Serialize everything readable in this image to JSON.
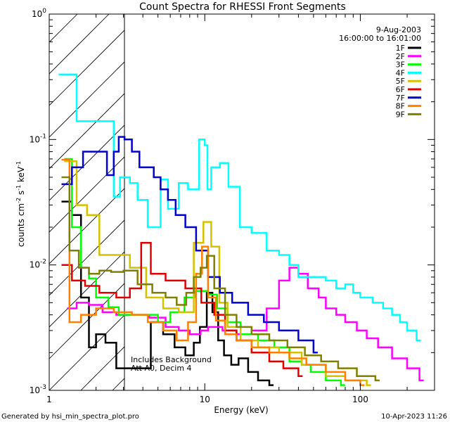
{
  "chart_data": {
    "type": "line",
    "title": "Count Spectra for RHESSI Front Segments",
    "xlabel": "Energy (keV)",
    "ylabel": "counts cm^-2 s^-1 keV^-1",
    "x_scale": "log",
    "y_scale": "log",
    "xlim": [
      1,
      300
    ],
    "ylim": [
      0.001,
      1
    ],
    "x_ticks": [
      {
        "value": 1,
        "label": "1"
      },
      {
        "value": 10,
        "label": "10"
      },
      {
        "value": 100,
        "label": "100"
      }
    ],
    "y_ticks": [
      {
        "value": 0.001,
        "mant": "10",
        "exp": "-3"
      },
      {
        "value": 0.01,
        "mant": "10",
        "exp": "-2"
      },
      {
        "value": 0.1,
        "mant": "10",
        "exp": "-1"
      },
      {
        "value": 1,
        "mant": "10",
        "exp": "0"
      }
    ],
    "grid": false,
    "legend_position": "top-right",
    "date_line": "9-Aug-2003",
    "time_line": "16:00:00 to 16:01:00",
    "annotation_lines": [
      "Includes Background",
      "Att A0, Decim 4"
    ],
    "shaded_region": {
      "x_range": [
        1,
        3
      ],
      "style": "diagonal hatching"
    },
    "series": [
      {
        "name": "1F",
        "color": "#000000",
        "points": [
          [
            1.2,
            0.032
          ],
          [
            1.4,
            0.025
          ],
          [
            1.6,
            0.0055
          ],
          [
            1.8,
            0.0022
          ],
          [
            2.0,
            0.0028
          ],
          [
            2.3,
            0.0024
          ],
          [
            2.7,
            0.0015
          ],
          [
            4.5,
            0.0035
          ],
          [
            5.4,
            0.0028
          ],
          [
            6.4,
            0.0022
          ],
          [
            7.5,
            0.0019
          ],
          [
            8.5,
            0.0024
          ],
          [
            9.3,
            0.0032
          ],
          [
            10.3,
            0.006
          ],
          [
            11.2,
            0.0042
          ],
          [
            12.2,
            0.0025
          ],
          [
            13.3,
            0.0019
          ],
          [
            14.8,
            0.0016
          ],
          [
            16.5,
            0.0018
          ],
          [
            19,
            0.0014
          ],
          [
            22,
            0.0012
          ],
          [
            26,
            0.0011
          ]
        ]
      },
      {
        "name": "2F",
        "color": "#ff00ff",
        "points": [
          [
            1.3,
            0.0045
          ],
          [
            1.5,
            0.005
          ],
          [
            1.8,
            0.0048
          ],
          [
            2.2,
            0.0042
          ],
          [
            2.7,
            0.004
          ],
          [
            4.4,
            0.0038
          ],
          [
            5.6,
            0.0032
          ],
          [
            6.8,
            0.003
          ],
          [
            8.0,
            0.0028
          ],
          [
            9.4,
            0.003
          ],
          [
            10.5,
            0.0032
          ],
          [
            13,
            0.003
          ],
          [
            16,
            0.0028
          ],
          [
            20,
            0.003
          ],
          [
            25,
            0.0045
          ],
          [
            30,
            0.0075
          ],
          [
            35,
            0.0095
          ],
          [
            40,
            0.0085
          ],
          [
            46,
            0.0065
          ],
          [
            54,
            0.0055
          ],
          [
            60,
            0.0045
          ],
          [
            70,
            0.004
          ],
          [
            80,
            0.0035
          ],
          [
            95,
            0.003
          ],
          [
            110,
            0.0026
          ],
          [
            130,
            0.0022
          ],
          [
            160,
            0.0018
          ],
          [
            200,
            0.0015
          ],
          [
            240,
            0.0012
          ]
        ]
      },
      {
        "name": "3F",
        "color": "#00ff00",
        "points": [
          [
            1.25,
            0.07
          ],
          [
            1.4,
            0.02
          ],
          [
            1.6,
            0.0095
          ],
          [
            1.8,
            0.0078
          ],
          [
            2.0,
            0.0055
          ],
          [
            2.4,
            0.0046
          ],
          [
            2.8,
            0.004
          ],
          [
            4.2,
            0.004
          ],
          [
            5.0,
            0.0035
          ],
          [
            6.0,
            0.0042
          ],
          [
            7.4,
            0.0055
          ],
          [
            8.7,
            0.0062
          ],
          [
            10.5,
            0.0058
          ],
          [
            12,
            0.0045
          ],
          [
            14,
            0.0035
          ],
          [
            17,
            0.0028
          ],
          [
            22,
            0.0025
          ],
          [
            28,
            0.0022
          ],
          [
            35,
            0.0017
          ],
          [
            42,
            0.0016
          ],
          [
            48,
            0.0014
          ],
          [
            60,
            0.0012
          ],
          [
            75,
            0.0011
          ]
        ]
      },
      {
        "name": "4F",
        "color": "#00ffff",
        "points": [
          [
            1.15,
            0.33
          ],
          [
            1.5,
            0.14
          ],
          [
            2.6,
            0.035
          ],
          [
            2.85,
            0.05
          ],
          [
            3.3,
            0.045
          ],
          [
            3.7,
            0.033
          ],
          [
            4.3,
            0.02
          ],
          [
            5.2,
            0.048
          ],
          [
            5.8,
            0.028
          ],
          [
            6.8,
            0.045
          ],
          [
            7.8,
            0.04
          ],
          [
            9.2,
            0.1
          ],
          [
            10,
            0.09
          ],
          [
            10.4,
            0.04
          ],
          [
            11,
            0.06
          ],
          [
            12.5,
            0.065
          ],
          [
            14.2,
            0.042
          ],
          [
            16.8,
            0.02
          ],
          [
            20,
            0.018
          ],
          [
            25,
            0.013
          ],
          [
            30,
            0.012
          ],
          [
            35,
            0.01
          ],
          [
            40,
            0.008
          ],
          [
            50,
            0.008
          ],
          [
            60,
            0.0075
          ],
          [
            70,
            0.0065
          ],
          [
            80,
            0.007
          ],
          [
            90,
            0.006
          ],
          [
            100,
            0.0055
          ],
          [
            120,
            0.005
          ],
          [
            140,
            0.0045
          ],
          [
            160,
            0.004
          ],
          [
            180,
            0.0035
          ],
          [
            200,
            0.003
          ],
          [
            230,
            0.0025
          ]
        ]
      },
      {
        "name": "5F",
        "color": "#d4c200",
        "points": [
          [
            1.25,
            0.067
          ],
          [
            1.5,
            0.03
          ],
          [
            1.75,
            0.025
          ],
          [
            2.1,
            0.012
          ],
          [
            2.7,
            0.012
          ],
          [
            3.3,
            0.0095
          ],
          [
            4.2,
            0.0055
          ],
          [
            5.4,
            0.0045
          ],
          [
            6.8,
            0.0042
          ],
          [
            8.5,
            0.015
          ],
          [
            9.8,
            0.022
          ],
          [
            11.0,
            0.014
          ],
          [
            12.4,
            0.005
          ],
          [
            14,
            0.0032
          ],
          [
            17,
            0.0025
          ],
          [
            22,
            0.0022
          ],
          [
            30,
            0.002
          ],
          [
            42,
            0.0016
          ],
          [
            60,
            0.0013
          ],
          [
            80,
            0.0012
          ],
          [
            110,
            0.0011
          ]
        ]
      },
      {
        "name": "6F",
        "color": "#e00000",
        "points": [
          [
            1.2,
            0.01
          ],
          [
            1.4,
            0.0075
          ],
          [
            1.7,
            0.0068
          ],
          [
            2.1,
            0.006
          ],
          [
            2.7,
            0.0055
          ],
          [
            3.3,
            0.0065
          ],
          [
            3.9,
            0.015
          ],
          [
            4.5,
            0.0085
          ],
          [
            5.6,
            0.0075
          ],
          [
            7.5,
            0.0065
          ],
          [
            9.5,
            0.005
          ],
          [
            11.5,
            0.004
          ],
          [
            13.5,
            0.003
          ],
          [
            16,
            0.0025
          ],
          [
            20,
            0.002
          ],
          [
            26,
            0.0017
          ],
          [
            32,
            0.0015
          ],
          [
            40,
            0.0013
          ]
        ]
      },
      {
        "name": "7F",
        "color": "#0000d0",
        "points": [
          [
            1.2,
            0.044
          ],
          [
            1.4,
            0.06
          ],
          [
            1.65,
            0.08
          ],
          [
            2.35,
            0.052
          ],
          [
            2.6,
            0.08
          ],
          [
            2.8,
            0.105
          ],
          [
            3.05,
            0.1
          ],
          [
            3.4,
            0.08
          ],
          [
            3.8,
            0.06
          ],
          [
            4.3,
            0.06
          ],
          [
            4.7,
            0.05
          ],
          [
            5.2,
            0.04
          ],
          [
            5.8,
            0.033
          ],
          [
            6.5,
            0.025
          ],
          [
            7.5,
            0.02
          ],
          [
            8.8,
            0.013
          ],
          [
            10.5,
            0.008
          ],
          [
            12.5,
            0.006
          ],
          [
            15,
            0.005
          ],
          [
            19,
            0.004
          ],
          [
            24,
            0.0035
          ],
          [
            30,
            0.003
          ],
          [
            40,
            0.0025
          ],
          [
            50,
            0.002
          ]
        ]
      },
      {
        "name": "8F",
        "color": "#ff8000",
        "points": [
          [
            1.2,
            0.069
          ],
          [
            1.35,
            0.0035
          ],
          [
            1.6,
            0.004
          ],
          [
            2.0,
            0.0045
          ],
          [
            2.6,
            0.0042
          ],
          [
            3.4,
            0.004
          ],
          [
            4.3,
            0.0035
          ],
          [
            5.4,
            0.003
          ],
          [
            6.6,
            0.0025
          ],
          [
            7.8,
            0.0035
          ],
          [
            8.8,
            0.0085
          ],
          [
            9.6,
            0.014
          ],
          [
            10.5,
            0.0055
          ],
          [
            11.8,
            0.0036
          ],
          [
            13.5,
            0.0028
          ],
          [
            16,
            0.0025
          ],
          [
            20,
            0.0022
          ],
          [
            26,
            0.002
          ],
          [
            35,
            0.0018
          ],
          [
            45,
            0.0016
          ],
          [
            60,
            0.0014
          ],
          [
            80,
            0.0012
          ],
          [
            100,
            0.0011
          ]
        ]
      },
      {
        "name": "9F",
        "color": "#808000",
        "points": [
          [
            1.2,
            0.05
          ],
          [
            1.35,
            0.013
          ],
          [
            1.55,
            0.0095
          ],
          [
            1.8,
            0.0085
          ],
          [
            2.1,
            0.009
          ],
          [
            2.5,
            0.0088
          ],
          [
            3.0,
            0.009
          ],
          [
            3.7,
            0.007
          ],
          [
            4.6,
            0.006
          ],
          [
            5.6,
            0.0055
          ],
          [
            6.6,
            0.0048
          ],
          [
            7.6,
            0.006
          ],
          [
            8.5,
            0.008
          ],
          [
            9.4,
            0.0095
          ],
          [
            10.3,
            0.0118
          ],
          [
            11.5,
            0.0065
          ],
          [
            13.5,
            0.004
          ],
          [
            16,
            0.0032
          ],
          [
            20,
            0.0028
          ],
          [
            26,
            0.0025
          ],
          [
            34,
            0.0022
          ],
          [
            44,
            0.0019
          ],
          [
            56,
            0.0017
          ],
          [
            72,
            0.0015
          ],
          [
            95,
            0.0013
          ],
          [
            125,
            0.0012
          ]
        ]
      }
    ]
  },
  "footer": {
    "left": "Generated by hsi_min_spectra_plot.pro",
    "right": "10-Apr-2023 11:26"
  }
}
